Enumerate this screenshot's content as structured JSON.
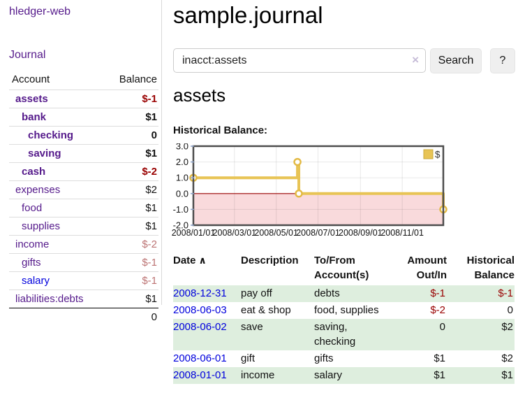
{
  "colors": {
    "accent_purple": "#551a8b",
    "link_blue": "#0000dd",
    "negative_strong": "#990000",
    "negative_soft": "#bc7373",
    "row_green": "#deeede",
    "chart_line": "#e8c455",
    "chart_negative_fill": "#f9dadc",
    "chart_zero_line": "#990000",
    "chart_border": "#4d4d4d"
  },
  "sidebar": {
    "brand": "hledger-web",
    "journal_link": "Journal",
    "accounts_table": {
      "account_header": "Account",
      "balance_header": "Balance",
      "rows": [
        {
          "account": "assets",
          "balance": "$-1",
          "depth": 1,
          "bold": true,
          "link": "purple"
        },
        {
          "account": "bank",
          "balance": "$1",
          "depth": 2,
          "bold": true,
          "link": "purple"
        },
        {
          "account": "checking",
          "balance": "0",
          "depth": 3,
          "bold": true,
          "link": "purple"
        },
        {
          "account": "saving",
          "balance": "$1",
          "depth": 3,
          "bold": true,
          "link": "purple"
        },
        {
          "account": "cash",
          "balance": "$-2",
          "depth": 2,
          "bold": true,
          "link": "purple"
        },
        {
          "account": "expenses",
          "balance": "$2",
          "depth": 1,
          "bold": false,
          "link": "purple"
        },
        {
          "account": "food",
          "balance": "$1",
          "depth": 2,
          "bold": false,
          "link": "purple"
        },
        {
          "account": "supplies",
          "balance": "$1",
          "depth": 2,
          "bold": false,
          "link": "purple"
        },
        {
          "account": "income",
          "balance": "$-2",
          "depth": 1,
          "bold": false,
          "link": "purple"
        },
        {
          "account": "gifts",
          "balance": "$-1",
          "depth": 2,
          "bold": false,
          "link": "purple"
        },
        {
          "account": "salary",
          "balance": "$-1",
          "depth": 2,
          "bold": false,
          "link": "blue"
        },
        {
          "account": "liabilities:debts",
          "balance": "$1",
          "depth": 1,
          "bold": false,
          "link": "purple"
        }
      ],
      "total": "0"
    }
  },
  "header": {
    "title": "sample.journal"
  },
  "search": {
    "value": "inacct:assets",
    "clear_icon": "×",
    "search_button": "Search",
    "help_button": "?"
  },
  "main": {
    "account_heading": "assets",
    "chart_heading": "Historical Balance:"
  },
  "register": {
    "sort_icon": "∧",
    "headers": [
      {
        "lines": [
          "Date"
        ],
        "align": "left",
        "sorted": true
      },
      {
        "lines": [
          "Description"
        ],
        "align": "left",
        "sorted": false
      },
      {
        "lines": [
          "To/From",
          "Account(s)"
        ],
        "align": "left",
        "sorted": false
      },
      {
        "lines": [
          "Amount",
          "Out/In"
        ],
        "align": "right",
        "sorted": false
      },
      {
        "lines": [
          "Historical",
          "Balance"
        ],
        "align": "right",
        "sorted": false
      }
    ],
    "rows": [
      {
        "date": "2008-12-31",
        "description": "pay off",
        "accounts": "debts",
        "amount": "$-1",
        "balance": "$-1"
      },
      {
        "date": "2008-06-03",
        "description": "eat & shop",
        "accounts": "food, supplies",
        "amount": "$-2",
        "balance": "0"
      },
      {
        "date": "2008-06-02",
        "description": "save",
        "accounts": "saving, checking",
        "amount": "0",
        "balance": "$2"
      },
      {
        "date": "2008-06-01",
        "description": "gift",
        "accounts": "gifts",
        "amount": "$1",
        "balance": "$2"
      },
      {
        "date": "2008-01-01",
        "description": "income",
        "accounts": "salary",
        "amount": "$1",
        "balance": "$1"
      }
    ]
  },
  "chart_data": {
    "type": "line",
    "title": "Historical Balance:",
    "legend": [
      {
        "label": "$",
        "color": "#e8c455"
      }
    ],
    "legend_position": "top-right",
    "grid": true,
    "ylim": [
      -2,
      3
    ],
    "y_ticks": [
      {
        "value": 3,
        "label": "3.0"
      },
      {
        "value": 2,
        "label": "2.0"
      },
      {
        "value": 1,
        "label": "1.0"
      },
      {
        "value": 0,
        "label": "0.0"
      },
      {
        "value": -1,
        "label": "-1.0"
      },
      {
        "value": -2,
        "label": "-2.0"
      }
    ],
    "x_domain_days": [
      0,
      365
    ],
    "x_ticks": [
      {
        "day": 0,
        "label": "2008/01/01"
      },
      {
        "day": 60,
        "label": "2008/03/01"
      },
      {
        "day": 121,
        "label": "2008/05/01"
      },
      {
        "day": 182,
        "label": "2008/07/01"
      },
      {
        "day": 244,
        "label": "2008/09/01"
      },
      {
        "day": 305,
        "label": "2008/11/01"
      }
    ],
    "series": [
      {
        "name": "$",
        "mode": "step",
        "points": [
          {
            "date": "2008-01-01",
            "day": 0,
            "value": 1
          },
          {
            "date": "2008-06-01",
            "day": 152,
            "value": 2
          },
          {
            "date": "2008-06-03",
            "day": 154,
            "value": 0
          },
          {
            "date": "2008-12-31",
            "day": 365,
            "value": -1
          }
        ]
      }
    ],
    "negative_region_shaded": true,
    "zero_line": true
  }
}
